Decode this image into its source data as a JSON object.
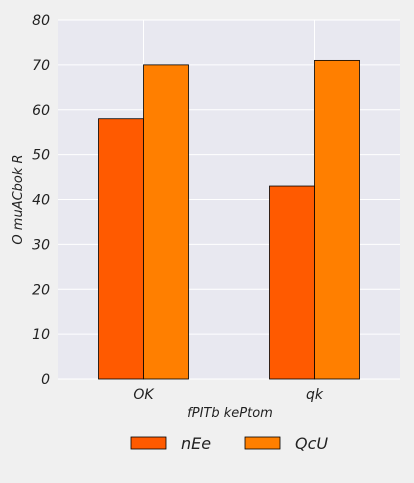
{
  "chart_data": {
    "type": "bar",
    "categories": [
      "OK",
      "qk"
    ],
    "series": [
      {
        "name": "nEe",
        "values": [
          58,
          43
        ],
        "color": "#ff5a00"
      },
      {
        "name": "QcU",
        "values": [
          70,
          71
        ],
        "color": "#ff7f00"
      }
    ],
    "xlabel": "fPITb kePtom",
    "ylabel": "O muACbok R",
    "ylim": [
      0,
      80
    ],
    "yticks": [
      0,
      10,
      20,
      30,
      40,
      50,
      60,
      70,
      80
    ],
    "grid": true,
    "legend_position": "bottom",
    "colors": {
      "plot_background": "#e8e8f0",
      "grid": "#ffffff",
      "bar_edge": "#000000"
    }
  }
}
